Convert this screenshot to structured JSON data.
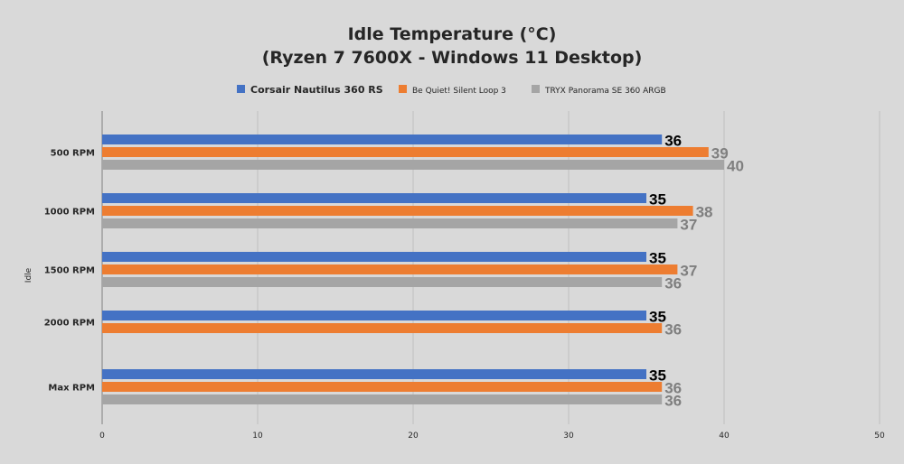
{
  "chart_data": {
    "type": "bar",
    "orientation": "horizontal",
    "title": [
      "Idle Temperature (°C)",
      "(Ryzen 7 7600X - Windows 11 Desktop)"
    ],
    "ylabel": "Idle",
    "xlabel": "",
    "categories": [
      "500 RPM",
      "1000 RPM",
      "1500 RPM",
      "2000 RPM",
      "Max RPM"
    ],
    "xlim": [
      0,
      50
    ],
    "xticks": [
      "0",
      "10",
      "20",
      "30",
      "40",
      "50"
    ],
    "grid": true,
    "legend_position": "top",
    "series": [
      {
        "name": "Corsair Nautilus 360 RS",
        "color": "#4472c4",
        "values": [
          36,
          35,
          35,
          35,
          35
        ]
      },
      {
        "name": "Be Quiet! Silent Loop 3",
        "color": "#ed7d31",
        "values": [
          39,
          38,
          37,
          36,
          36
        ]
      },
      {
        "name": "TRYX Panorama SE 360 ARGB",
        "color": "#a5a5a5",
        "values": [
          40,
          37,
          36,
          null,
          36
        ]
      }
    ]
  }
}
